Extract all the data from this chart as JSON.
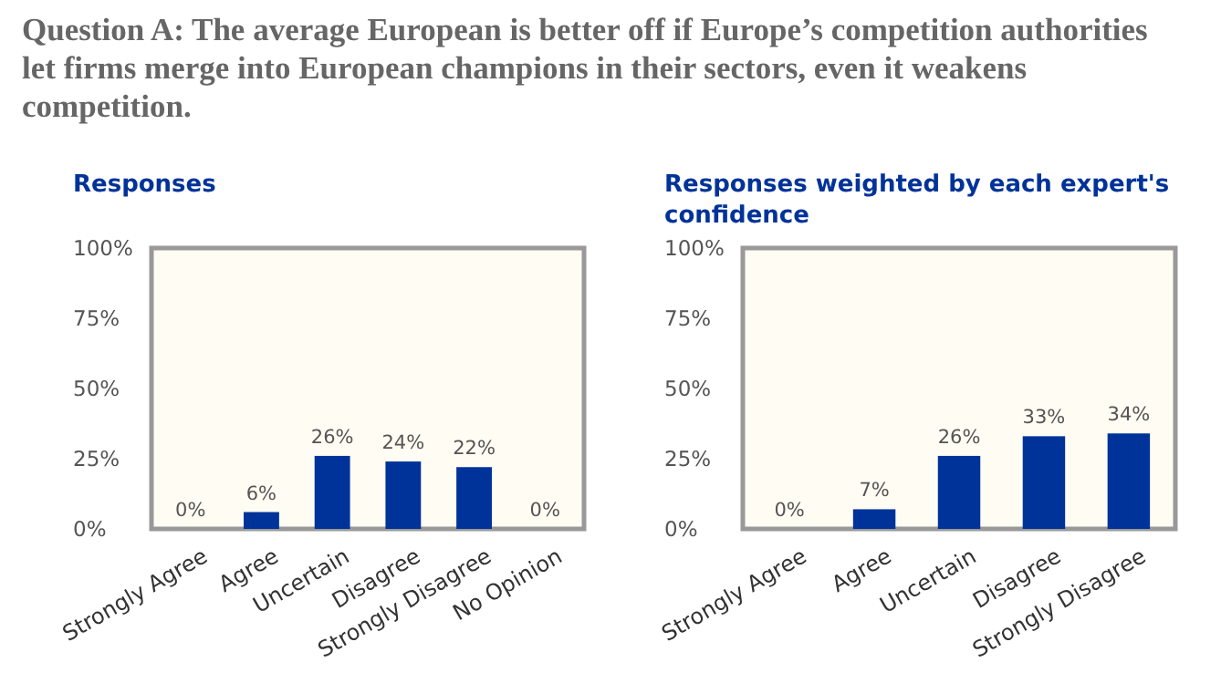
{
  "chart_data": [
    {
      "type": "bar",
      "title": "Question A: The average European is better off if Europe’s competition authorities let firms merge into European champions in their sectors, even it weakens competition.",
      "subtitle": "Responses",
      "categories": [
        "Strongly Agree",
        "Agree",
        "Uncertain",
        "Disagree",
        "Strongly Disagree",
        "No Opinion"
      ],
      "values": [
        0,
        6,
        26,
        24,
        22,
        0
      ],
      "value_labels": [
        "0%",
        "6%",
        "26%",
        "24%",
        "22%",
        "0%"
      ],
      "color": "#003399",
      "ylim": [
        0,
        100
      ],
      "yticks": [
        {
          "value": 0,
          "label": "0%"
        },
        {
          "value": 25,
          "label": "25%"
        },
        {
          "value": 50,
          "label": "50%"
        },
        {
          "value": 75,
          "label": "75%"
        },
        {
          "value": 100,
          "label": "100%"
        }
      ],
      "grid": false
    },
    {
      "type": "bar",
      "subtitle": "Responses weighted by each expert's confidence",
      "categories": [
        "Strongly Agree",
        "Agree",
        "Uncertain",
        "Disagree",
        "Strongly Disagree"
      ],
      "values": [
        0,
        7,
        26,
        33,
        34
      ],
      "value_labels": [
        "0%",
        "7%",
        "26%",
        "33%",
        "34%"
      ],
      "color": "#003399",
      "ylim": [
        0,
        100
      ],
      "yticks": [
        {
          "value": 0,
          "label": "0%"
        },
        {
          "value": 25,
          "label": "25%"
        },
        {
          "value": 50,
          "label": "50%"
        },
        {
          "value": 75,
          "label": "75%"
        },
        {
          "value": 100,
          "label": "100%"
        }
      ],
      "grid": false
    }
  ]
}
